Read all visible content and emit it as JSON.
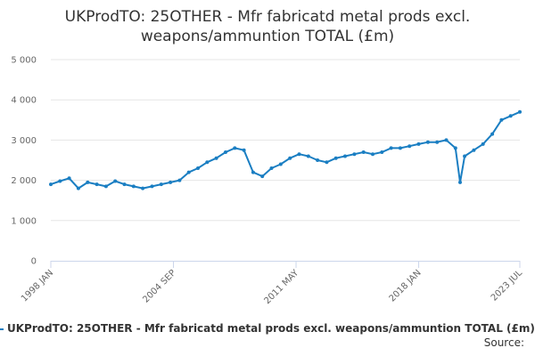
{
  "chart_data": {
    "type": "line",
    "title_line1": "UKProdTO: 25OTHER - Mfr fabricatd metal prods excl.",
    "title_line2": "weapons/ammuntion TOTAL (£m)",
    "y_ticks": [
      "0",
      "1 000",
      "2 000",
      "3 000",
      "4 000",
      "5 000"
    ],
    "ylim": [
      0,
      5000
    ],
    "x_tick_labels": [
      "1998 JAN",
      "2004 SEP",
      "2011 MAY",
      "2018 JAN",
      "2023 JUL"
    ],
    "x_tick_dates": [
      "1998-01",
      "2004-09",
      "2011-05",
      "2018-01",
      "2023-07"
    ],
    "grid": true,
    "legend_position": "bottom",
    "source_label": "Source:",
    "color": "#1a7ec2",
    "series": [
      {
        "name": "UKProdTO: 25OTHER - Mfr fabricatd metal prods excl. weapons/ammuntion TOTAL (£m)",
        "x": [
          "1998-01",
          "1998-07",
          "1999-01",
          "1999-07",
          "2000-01",
          "2000-07",
          "2001-01",
          "2001-07",
          "2002-01",
          "2002-07",
          "2003-01",
          "2003-07",
          "2004-01",
          "2004-07",
          "2005-01",
          "2005-07",
          "2006-01",
          "2006-07",
          "2007-01",
          "2007-07",
          "2008-01",
          "2008-07",
          "2009-01",
          "2009-07",
          "2010-01",
          "2010-07",
          "2011-01",
          "2011-07",
          "2012-01",
          "2012-07",
          "2013-01",
          "2013-07",
          "2014-01",
          "2014-07",
          "2015-01",
          "2015-07",
          "2016-01",
          "2016-07",
          "2017-01",
          "2017-07",
          "2018-01",
          "2018-07",
          "2019-01",
          "2019-07",
          "2020-01",
          "2020-04",
          "2020-07",
          "2021-01",
          "2021-07",
          "2022-01",
          "2022-07",
          "2023-01",
          "2023-07"
        ],
        "y": [
          1900,
          1980,
          2050,
          1800,
          1950,
          1900,
          1850,
          1980,
          1900,
          1850,
          1800,
          1850,
          1900,
          1950,
          2000,
          2200,
          2300,
          2450,
          2550,
          2700,
          2800,
          2750,
          2200,
          2100,
          2300,
          2400,
          2550,
          2650,
          2600,
          2500,
          2450,
          2550,
          2600,
          2650,
          2700,
          2650,
          2700,
          2800,
          2800,
          2850,
          2900,
          2950,
          2950,
          3000,
          2800,
          1950,
          2600,
          2750,
          2900,
          3150,
          3500,
          3600,
          3700
        ]
      }
    ]
  }
}
